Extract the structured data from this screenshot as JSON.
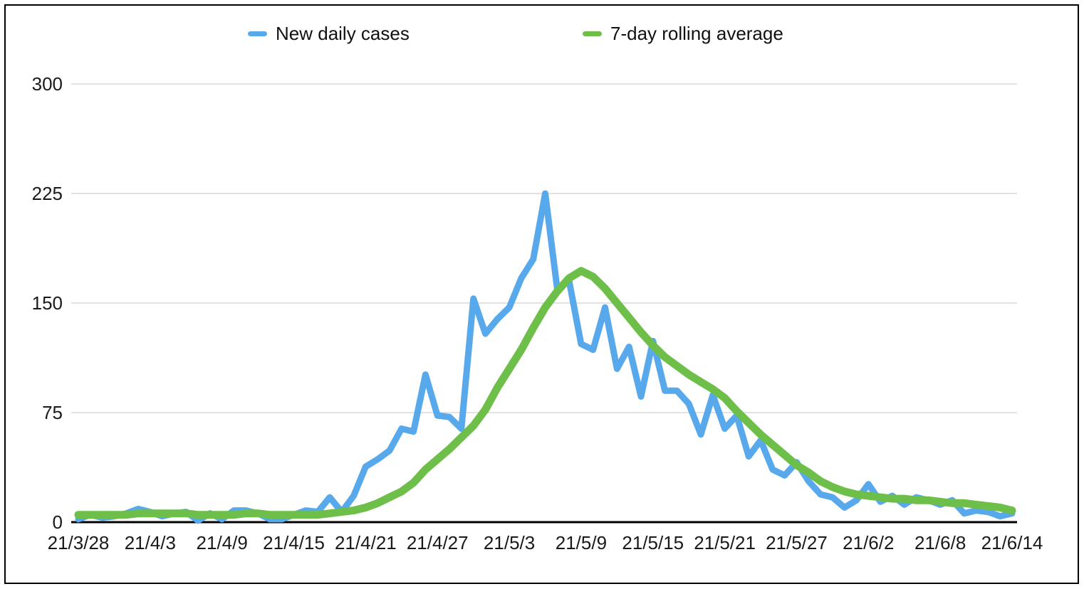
{
  "chart_data": {
    "type": "line",
    "title": "",
    "legend_position": "top",
    "grid": "horizontal",
    "colors": {
      "daily_cases": "#57a9eb",
      "rolling_average": "#6dbf49",
      "gridline": "#d9d9d9",
      "axis": "#000000",
      "tick_text": "#1a1a1a",
      "border": "#000000",
      "background": "#ffffff"
    },
    "x_axis": {
      "unit": "date (YY/M/D), one point per day",
      "start_date": "21/3/28",
      "end_date": "21/6/14",
      "points_per_series": 79,
      "tick_labels": [
        "21/3/28",
        "21/4/3",
        "21/4/9",
        "21/4/15",
        "21/4/21",
        "21/4/27",
        "21/5/3",
        "21/5/9",
        "21/5/15",
        "21/5/21",
        "21/5/27",
        "21/6/2",
        "21/6/8",
        "21/6/14"
      ],
      "tick_day_indices": [
        0,
        6,
        12,
        18,
        24,
        30,
        36,
        42,
        48,
        54,
        60,
        66,
        72,
        78
      ]
    },
    "y_axis": {
      "ticks": [
        0,
        75,
        150,
        225,
        300
      ],
      "tick_labels": [
        "0",
        "75",
        "150",
        "225",
        "300"
      ],
      "range": [
        0,
        300
      ]
    },
    "series": [
      {
        "name": "New daily cases",
        "color": "#57a9eb",
        "stroke_width": 9,
        "values": [
          2,
          5,
          3,
          4,
          6,
          9,
          7,
          4,
          6,
          7,
          1,
          6,
          2,
          8,
          8,
          6,
          2,
          2,
          5,
          8,
          7,
          17,
          7,
          18,
          38,
          43,
          49,
          64,
          62,
          101,
          73,
          72,
          64,
          153,
          129,
          139,
          147,
          167,
          180,
          225,
          160,
          165,
          122,
          118,
          147,
          105,
          120,
          86,
          124,
          90,
          90,
          81,
          60,
          87,
          64,
          73,
          45,
          56,
          36,
          32,
          41,
          28,
          19,
          17,
          10,
          15,
          26,
          14,
          18,
          12,
          17,
          15,
          12,
          15,
          6,
          8,
          7,
          4,
          6
        ]
      },
      {
        "name": "7-day rolling average",
        "color": "#6dbf49",
        "stroke_width": 11,
        "values": [
          5,
          5,
          5,
          5,
          5,
          6,
          6,
          6,
          6,
          6,
          5,
          5,
          5,
          5,
          6,
          6,
          5,
          5,
          5,
          5,
          5,
          6,
          7,
          8,
          10,
          13,
          17,
          21,
          27,
          36,
          43,
          50,
          58,
          66,
          77,
          92,
          105,
          118,
          133,
          147,
          158,
          167,
          172,
          168,
          160,
          150,
          140,
          130,
          121,
          113,
          107,
          101,
          96,
          91,
          85,
          76,
          68,
          60,
          53,
          46,
          39,
          34,
          28,
          24,
          21,
          19,
          18,
          17,
          16,
          16,
          15,
          15,
          14,
          13,
          13,
          12,
          11,
          10,
          8
        ]
      }
    ]
  }
}
